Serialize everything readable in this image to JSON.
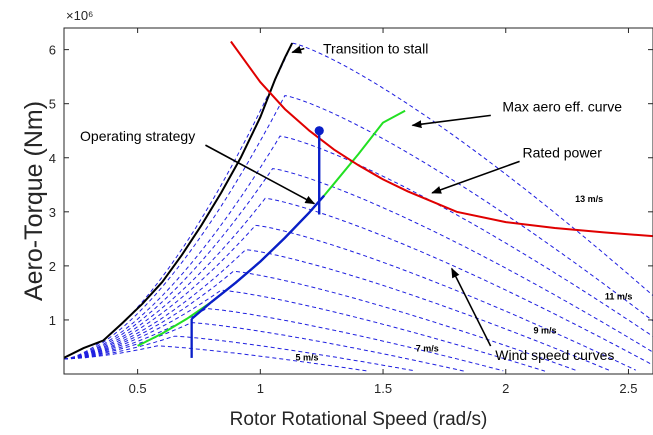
{
  "chart_data": {
    "type": "line",
    "xlabel": "Rotor Rotational Speed (rad/s)",
    "ylabel": "Aero-Torque (Nm)",
    "y_multiplier_label": "×10⁶",
    "xlim": [
      0.2,
      2.6
    ],
    "ylim": [
      0,
      6.4
    ],
    "x_ticks": [
      0.5,
      1,
      1.5,
      2,
      2.5
    ],
    "x_tick_labels": [
      "0.5",
      "1",
      "1.5",
      "2",
      "2.5"
    ],
    "y_ticks": [
      1,
      2,
      3,
      4,
      5,
      6
    ],
    "y_tick_labels": [
      "1",
      "2",
      "3",
      "4",
      "5",
      "6"
    ],
    "grid": false,
    "colors": {
      "wind_curves": "#1f1fe0",
      "stall": "#000000",
      "max_aero": "#22e022",
      "rated_power": "#e00000",
      "operating": "#0a1fc8",
      "annotation": "#000000"
    },
    "wind_speed_curves": [
      {
        "peak_x": 0.58,
        "peak_y": 0.52
      },
      {
        "peak_x": 0.65,
        "peak_y": 0.7
      },
      {
        "peak_x": 0.72,
        "peak_y": 0.95
      },
      {
        "peak_x": 0.78,
        "peak_y": 1.21
      },
      {
        "peak_x": 0.84,
        "peak_y": 1.55
      },
      {
        "peak_x": 0.89,
        "peak_y": 1.9
      },
      {
        "peak_x": 0.94,
        "peak_y": 2.3
      },
      {
        "peak_x": 0.98,
        "peak_y": 2.75
      },
      {
        "peak_x": 1.02,
        "peak_y": 3.25
      },
      {
        "peak_x": 1.05,
        "peak_y": 3.8
      },
      {
        "peak_x": 1.08,
        "peak_y": 4.4
      },
      {
        "peak_x": 1.1,
        "peak_y": 5.15
      },
      {
        "peak_x": 1.13,
        "peak_y": 6.12
      }
    ],
    "wind_curve_labels": [
      {
        "text": "5 m/s",
        "x": 1.19,
        "y": 0.25
      },
      {
        "text": "7 m/s",
        "x": 1.68,
        "y": 0.42
      },
      {
        "text": "9 m/s",
        "x": 2.16,
        "y": 0.75
      },
      {
        "text": "11 m/s",
        "x": 2.46,
        "y": 1.38
      },
      {
        "text": "13 m/s",
        "x": 2.34,
        "y": 3.18
      }
    ],
    "series": [
      {
        "name": "Transition to stall",
        "x": [
          0.2,
          0.28,
          0.36,
          0.44,
          0.52,
          0.6,
          0.68,
          0.76,
          0.84,
          0.92,
          1.0,
          1.06,
          1.1,
          1.13
        ],
        "y": [
          0.3,
          0.48,
          0.62,
          0.95,
          1.3,
          1.7,
          2.2,
          2.75,
          3.35,
          4.0,
          4.75,
          5.45,
          5.85,
          6.12
        ]
      },
      {
        "name": "Max aero eff. curve",
        "x": [
          0.5,
          0.6,
          0.7,
          0.8,
          0.9,
          1.0,
          1.1,
          1.2,
          1.26,
          1.3,
          1.4,
          1.5,
          1.59
        ],
        "y": [
          0.52,
          0.75,
          1.02,
          1.33,
          1.69,
          2.08,
          2.52,
          2.99,
          3.3,
          3.52,
          4.07,
          4.65,
          4.87
        ]
      },
      {
        "name": "Rated power",
        "x": [
          0.88,
          1.0,
          1.1,
          1.2,
          1.3,
          1.4,
          1.5,
          1.6,
          1.8,
          2.0,
          2.2,
          2.4,
          2.6
        ],
        "y": [
          6.15,
          5.4,
          4.9,
          4.5,
          4.15,
          3.86,
          3.6,
          3.38,
          3.0,
          2.81,
          2.7,
          2.62,
          2.55
        ]
      },
      {
        "name": "Operating strategy",
        "segments": [
          {
            "x": [
              0.72,
              0.72
            ],
            "y": [
              0.3,
              1.02
            ]
          },
          {
            "x": [
              0.72,
              0.8,
              0.9,
              1.0,
              1.1,
              1.2,
              1.26
            ],
            "y": [
              1.02,
              1.33,
              1.69,
              2.08,
              2.52,
              2.99,
              3.3
            ]
          },
          {
            "x": [
              1.24,
              1.24
            ],
            "y": [
              2.95,
              4.5
            ]
          }
        ],
        "marker": {
          "x": 1.24,
          "y": 4.5
        }
      }
    ],
    "annotations": [
      {
        "text": "Transition to stall",
        "text_x": 1.47,
        "text_y": 6.02,
        "arrow_to_x": 1.13,
        "arrow_to_y": 5.95
      },
      {
        "text": "Max aero eff. curve",
        "text_x": 2.23,
        "text_y": 4.95,
        "arrow_to_x": 1.62,
        "arrow_to_y": 4.6
      },
      {
        "text": "Operating strategy",
        "text_x": 0.5,
        "text_y": 4.4,
        "arrow_to_x": 1.22,
        "arrow_to_y": 3.15
      },
      {
        "text": "Rated power",
        "text_x": 2.23,
        "text_y": 4.1,
        "arrow_to_x": 1.7,
        "arrow_to_y": 3.35
      },
      {
        "text": "Wind speed curves",
        "text_x": 2.2,
        "text_y": 0.35,
        "arrow_to_x": 1.78,
        "arrow_to_y": 1.95
      }
    ]
  }
}
